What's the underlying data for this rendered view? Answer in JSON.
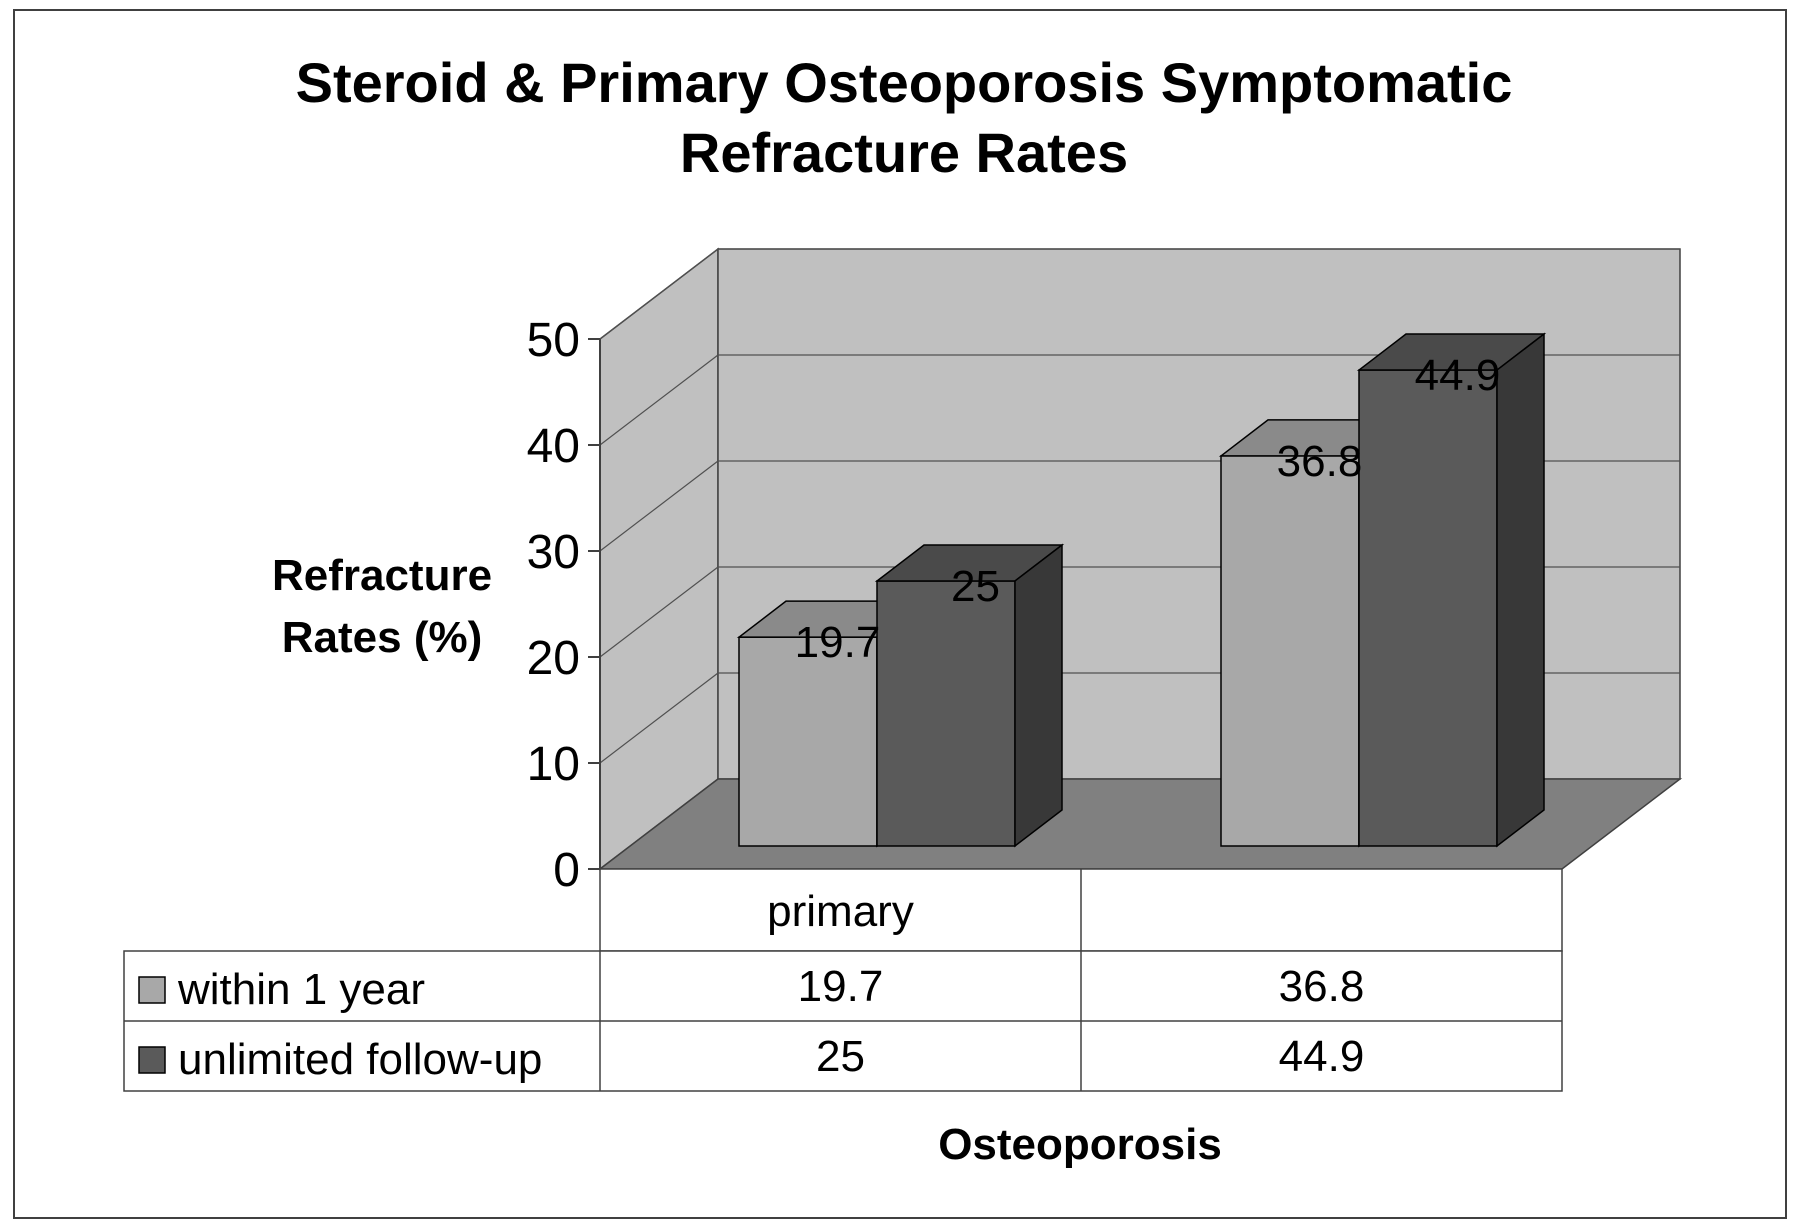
{
  "chart_data": {
    "type": "bar",
    "title": "Steroid & Primary Osteoporosis Symptomatic Refracture Rates",
    "title_lines": [
      "Steroid & Primary Osteoporosis Symptomatic",
      "Refracture Rates"
    ],
    "xlabel": "Osteoporosis",
    "ylabel": "Refracture Rates (%)",
    "ylabel_lines": [
      "Refracture",
      "Rates (%)"
    ],
    "ylim": [
      0,
      50
    ],
    "yticks": [
      "0",
      "10",
      "20",
      "30",
      "40",
      "50"
    ],
    "categories": [
      "primary",
      ""
    ],
    "series": [
      {
        "name": "within 1 year",
        "values": [
          19.7,
          36.8
        ],
        "labels": [
          "19.7",
          "36.8"
        ],
        "color": "#a8a8a8"
      },
      {
        "name": "unlimited follow-up",
        "values": [
          25,
          44.9
        ],
        "labels": [
          "25",
          "44.9"
        ],
        "color": "#5a5a5a"
      }
    ],
    "render_3d": true,
    "grid": true,
    "data_table": true,
    "colors": {
      "wall": "#c0c0c0",
      "floor": "#808080",
      "frame": "#404040"
    }
  }
}
